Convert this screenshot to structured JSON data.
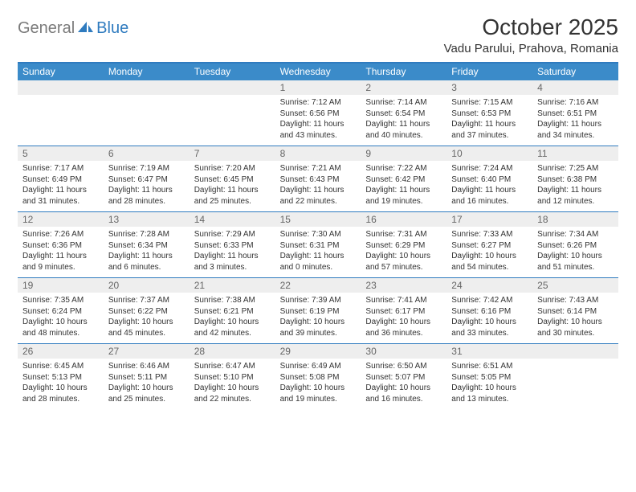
{
  "brand": {
    "word1": "General",
    "word2": "Blue"
  },
  "title": "October 2025",
  "location": "Vadu Parului, Prahova, Romania",
  "colors": {
    "header_bar": "#3b8bc9",
    "rule": "#2f7bbf",
    "daynum_bg": "#eeeeee",
    "daynum_fg": "#666666",
    "text": "#333333",
    "logo_gray": "#7a7a7a",
    "logo_blue": "#2f7bbf",
    "background": "#ffffff"
  },
  "typography": {
    "title_fontsize": 28,
    "location_fontsize": 15,
    "dow_fontsize": 12,
    "daynum_fontsize": 12,
    "body_fontsize": 10
  },
  "days_of_week": [
    "Sunday",
    "Monday",
    "Tuesday",
    "Wednesday",
    "Thursday",
    "Friday",
    "Saturday"
  ],
  "weeks": [
    [
      {
        "num": "",
        "sunrise": "",
        "sunset": "",
        "daylight": ""
      },
      {
        "num": "",
        "sunrise": "",
        "sunset": "",
        "daylight": ""
      },
      {
        "num": "",
        "sunrise": "",
        "sunset": "",
        "daylight": ""
      },
      {
        "num": "1",
        "sunrise": "Sunrise: 7:12 AM",
        "sunset": "Sunset: 6:56 PM",
        "daylight": "Daylight: 11 hours and 43 minutes."
      },
      {
        "num": "2",
        "sunrise": "Sunrise: 7:14 AM",
        "sunset": "Sunset: 6:54 PM",
        "daylight": "Daylight: 11 hours and 40 minutes."
      },
      {
        "num": "3",
        "sunrise": "Sunrise: 7:15 AM",
        "sunset": "Sunset: 6:53 PM",
        "daylight": "Daylight: 11 hours and 37 minutes."
      },
      {
        "num": "4",
        "sunrise": "Sunrise: 7:16 AM",
        "sunset": "Sunset: 6:51 PM",
        "daylight": "Daylight: 11 hours and 34 minutes."
      }
    ],
    [
      {
        "num": "5",
        "sunrise": "Sunrise: 7:17 AM",
        "sunset": "Sunset: 6:49 PM",
        "daylight": "Daylight: 11 hours and 31 minutes."
      },
      {
        "num": "6",
        "sunrise": "Sunrise: 7:19 AM",
        "sunset": "Sunset: 6:47 PM",
        "daylight": "Daylight: 11 hours and 28 minutes."
      },
      {
        "num": "7",
        "sunrise": "Sunrise: 7:20 AM",
        "sunset": "Sunset: 6:45 PM",
        "daylight": "Daylight: 11 hours and 25 minutes."
      },
      {
        "num": "8",
        "sunrise": "Sunrise: 7:21 AM",
        "sunset": "Sunset: 6:43 PM",
        "daylight": "Daylight: 11 hours and 22 minutes."
      },
      {
        "num": "9",
        "sunrise": "Sunrise: 7:22 AM",
        "sunset": "Sunset: 6:42 PM",
        "daylight": "Daylight: 11 hours and 19 minutes."
      },
      {
        "num": "10",
        "sunrise": "Sunrise: 7:24 AM",
        "sunset": "Sunset: 6:40 PM",
        "daylight": "Daylight: 11 hours and 16 minutes."
      },
      {
        "num": "11",
        "sunrise": "Sunrise: 7:25 AM",
        "sunset": "Sunset: 6:38 PM",
        "daylight": "Daylight: 11 hours and 12 minutes."
      }
    ],
    [
      {
        "num": "12",
        "sunrise": "Sunrise: 7:26 AM",
        "sunset": "Sunset: 6:36 PM",
        "daylight": "Daylight: 11 hours and 9 minutes."
      },
      {
        "num": "13",
        "sunrise": "Sunrise: 7:28 AM",
        "sunset": "Sunset: 6:34 PM",
        "daylight": "Daylight: 11 hours and 6 minutes."
      },
      {
        "num": "14",
        "sunrise": "Sunrise: 7:29 AM",
        "sunset": "Sunset: 6:33 PM",
        "daylight": "Daylight: 11 hours and 3 minutes."
      },
      {
        "num": "15",
        "sunrise": "Sunrise: 7:30 AM",
        "sunset": "Sunset: 6:31 PM",
        "daylight": "Daylight: 11 hours and 0 minutes."
      },
      {
        "num": "16",
        "sunrise": "Sunrise: 7:31 AM",
        "sunset": "Sunset: 6:29 PM",
        "daylight": "Daylight: 10 hours and 57 minutes."
      },
      {
        "num": "17",
        "sunrise": "Sunrise: 7:33 AM",
        "sunset": "Sunset: 6:27 PM",
        "daylight": "Daylight: 10 hours and 54 minutes."
      },
      {
        "num": "18",
        "sunrise": "Sunrise: 7:34 AM",
        "sunset": "Sunset: 6:26 PM",
        "daylight": "Daylight: 10 hours and 51 minutes."
      }
    ],
    [
      {
        "num": "19",
        "sunrise": "Sunrise: 7:35 AM",
        "sunset": "Sunset: 6:24 PM",
        "daylight": "Daylight: 10 hours and 48 minutes."
      },
      {
        "num": "20",
        "sunrise": "Sunrise: 7:37 AM",
        "sunset": "Sunset: 6:22 PM",
        "daylight": "Daylight: 10 hours and 45 minutes."
      },
      {
        "num": "21",
        "sunrise": "Sunrise: 7:38 AM",
        "sunset": "Sunset: 6:21 PM",
        "daylight": "Daylight: 10 hours and 42 minutes."
      },
      {
        "num": "22",
        "sunrise": "Sunrise: 7:39 AM",
        "sunset": "Sunset: 6:19 PM",
        "daylight": "Daylight: 10 hours and 39 minutes."
      },
      {
        "num": "23",
        "sunrise": "Sunrise: 7:41 AM",
        "sunset": "Sunset: 6:17 PM",
        "daylight": "Daylight: 10 hours and 36 minutes."
      },
      {
        "num": "24",
        "sunrise": "Sunrise: 7:42 AM",
        "sunset": "Sunset: 6:16 PM",
        "daylight": "Daylight: 10 hours and 33 minutes."
      },
      {
        "num": "25",
        "sunrise": "Sunrise: 7:43 AM",
        "sunset": "Sunset: 6:14 PM",
        "daylight": "Daylight: 10 hours and 30 minutes."
      }
    ],
    [
      {
        "num": "26",
        "sunrise": "Sunrise: 6:45 AM",
        "sunset": "Sunset: 5:13 PM",
        "daylight": "Daylight: 10 hours and 28 minutes."
      },
      {
        "num": "27",
        "sunrise": "Sunrise: 6:46 AM",
        "sunset": "Sunset: 5:11 PM",
        "daylight": "Daylight: 10 hours and 25 minutes."
      },
      {
        "num": "28",
        "sunrise": "Sunrise: 6:47 AM",
        "sunset": "Sunset: 5:10 PM",
        "daylight": "Daylight: 10 hours and 22 minutes."
      },
      {
        "num": "29",
        "sunrise": "Sunrise: 6:49 AM",
        "sunset": "Sunset: 5:08 PM",
        "daylight": "Daylight: 10 hours and 19 minutes."
      },
      {
        "num": "30",
        "sunrise": "Sunrise: 6:50 AM",
        "sunset": "Sunset: 5:07 PM",
        "daylight": "Daylight: 10 hours and 16 minutes."
      },
      {
        "num": "31",
        "sunrise": "Sunrise: 6:51 AM",
        "sunset": "Sunset: 5:05 PM",
        "daylight": "Daylight: 10 hours and 13 minutes."
      },
      {
        "num": "",
        "sunrise": "",
        "sunset": "",
        "daylight": ""
      }
    ]
  ]
}
